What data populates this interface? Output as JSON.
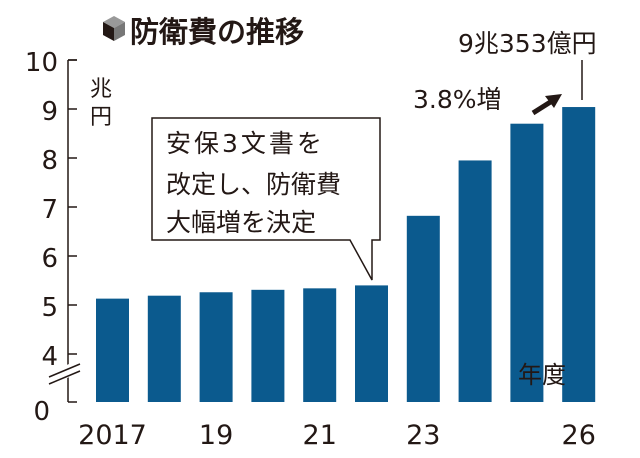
{
  "chart_data": {
    "type": "bar",
    "title": "防衛費の推移",
    "ylabel": "兆円",
    "xlabel": "年度",
    "categories": [
      "2017",
      "2018",
      "2019",
      "2020",
      "2021",
      "2022",
      "2023",
      "2024",
      "2025",
      "2026"
    ],
    "x_tick_labels": [
      "2017",
      "",
      "19",
      "",
      "21",
      "",
      "23",
      "",
      "",
      "26"
    ],
    "values": [
      5.13,
      5.19,
      5.26,
      5.31,
      5.34,
      5.4,
      6.82,
      7.95,
      8.7,
      9.04
    ],
    "y_ticks": [
      "0",
      "4",
      "5",
      "6",
      "7",
      "8",
      "9",
      "10"
    ],
    "ylim": [
      0,
      10
    ],
    "axis_break": "between 0 and 4",
    "grid": false,
    "bar_color": "#0b5a8e",
    "annotations": {
      "callout_lines": [
        "安保3文書を",
        "改定し、防衛費",
        "大幅増を決定"
      ],
      "last_value_label": "9兆353億円",
      "growth_label": "3.8%増"
    }
  }
}
